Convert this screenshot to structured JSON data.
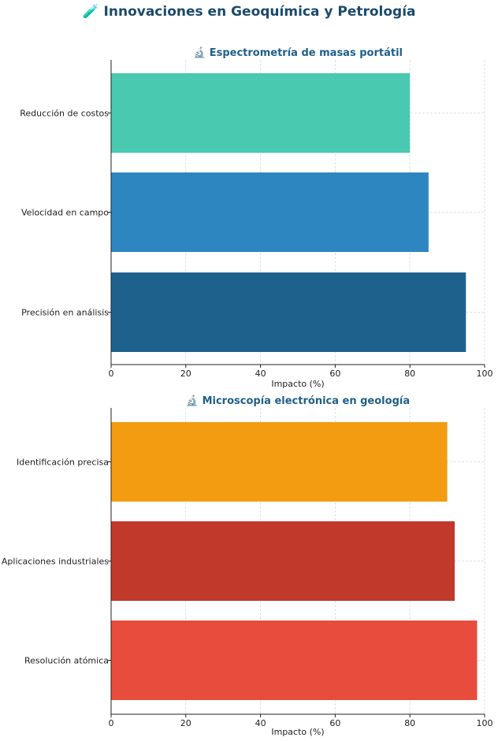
{
  "figure": {
    "title": "🧪 Innovaciones en Geoquímica y Petrología"
  },
  "chart_data": [
    {
      "type": "bar",
      "orientation": "horizontal",
      "title": "🔬 Espectrometría de masas portátil",
      "xlabel": "Impacto (%)",
      "ylabel": "",
      "xlim": [
        0,
        100
      ],
      "xticks": [
        "0",
        "20",
        "40",
        "60",
        "80",
        "100"
      ],
      "grid": true,
      "categories": [
        "Reducción de costos",
        "Velocidad en campo",
        "Precisión en análisis"
      ],
      "values": [
        80,
        85,
        95
      ],
      "colors": [
        "#48c9b0",
        "#2e86c1",
        "#1f618d"
      ]
    },
    {
      "type": "bar",
      "orientation": "horizontal",
      "title": "🔬 Microscopía electrónica en geología",
      "xlabel": "Impacto (%)",
      "ylabel": "",
      "xlim": [
        0,
        100
      ],
      "xticks": [
        "0",
        "20",
        "40",
        "60",
        "80",
        "100"
      ],
      "grid": true,
      "categories": [
        "Identificación precisa",
        "Aplicaciones industriales",
        "Resolución atómica"
      ],
      "values": [
        90,
        92,
        98
      ],
      "colors": [
        "#f39c12",
        "#c0392b",
        "#e74c3c"
      ]
    }
  ]
}
